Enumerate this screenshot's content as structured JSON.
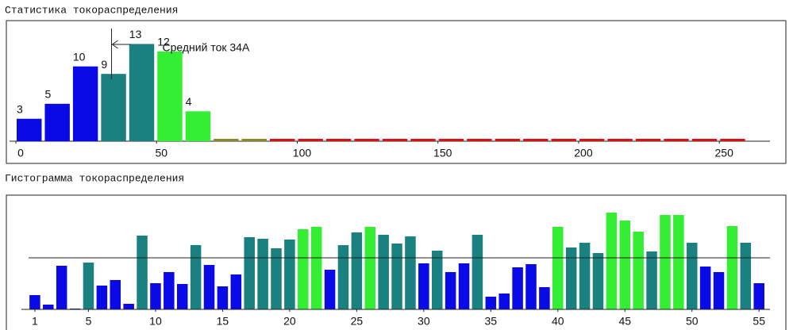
{
  "chart_data": [
    {
      "type": "histogram",
      "title": "Статистика токораспределения",
      "bins": [
        0,
        10,
        20,
        30,
        40,
        50,
        60,
        70,
        80,
        90,
        100,
        110,
        120,
        130,
        140,
        150,
        160,
        170,
        180,
        190,
        200,
        210,
        220,
        230,
        240,
        250,
        260
      ],
      "counts": [
        3,
        5,
        10,
        9,
        13,
        12,
        4,
        0,
        0,
        0,
        0,
        0,
        0,
        0,
        0,
        0,
        0,
        0,
        0,
        0,
        0,
        0,
        0,
        0,
        0,
        0
      ],
      "colors": [
        "#0a0ae6",
        "#0a0ae6",
        "#0a0ae6",
        "#1a8080",
        "#1a8080",
        "#33ee33",
        "#33ee33",
        "#8a8a2a",
        "#8a8a2a",
        "#dd1111",
        "#dd1111",
        "#dd1111",
        "#dd1111",
        "#dd1111",
        "#dd1111",
        "#dd1111",
        "#dd1111",
        "#dd1111",
        "#dd1111",
        "#dd1111",
        "#dd1111",
        "#dd1111",
        "#dd1111",
        "#dd1111",
        "#dd1111",
        "#dd1111"
      ],
      "xlim": [
        0,
        268
      ],
      "xticks": [
        0,
        50,
        100,
        150,
        200,
        250
      ],
      "ylim": [
        0,
        14
      ],
      "mean": 34,
      "annotation": "Средний ток 34А"
    },
    {
      "type": "bar",
      "title": "Гистограмма токораспределения",
      "x": [
        1,
        2,
        3,
        4,
        5,
        6,
        7,
        8,
        9,
        10,
        11,
        12,
        13,
        14,
        15,
        16,
        17,
        18,
        19,
        20,
        21,
        22,
        23,
        24,
        25,
        26,
        27,
        28,
        29,
        30,
        31,
        32,
        33,
        34,
        35,
        36,
        37,
        38,
        39,
        40,
        41,
        42,
        43,
        44,
        45,
        46,
        47,
        48,
        49,
        50,
        51,
        52,
        53,
        54,
        55
      ],
      "values": [
        18,
        6,
        55,
        1,
        59,
        30,
        37,
        7,
        93,
        33,
        47,
        32,
        81,
        56,
        29,
        44,
        91,
        89,
        77,
        88,
        101,
        104,
        50,
        81,
        97,
        104,
        94,
        83,
        92,
        58,
        74,
        47,
        58,
        94,
        16,
        20,
        53,
        57,
        28,
        104,
        78,
        84,
        71,
        122,
        112,
        98,
        73,
        119,
        119,
        84,
        54,
        47,
        105,
        84,
        33
      ],
      "colors": [
        "#0a0ae6",
        "#0a0ae6",
        "#0a0ae6",
        "#0a0ae6",
        "#1a8080",
        "#0a0ae6",
        "#0a0ae6",
        "#0a0ae6",
        "#1a8080",
        "#0a0ae6",
        "#0a0ae6",
        "#0a0ae6",
        "#1a8080",
        "#0a0ae6",
        "#0a0ae6",
        "#0a0ae6",
        "#1a8080",
        "#1a8080",
        "#1a8080",
        "#1a8080",
        "#33ee33",
        "#33ee33",
        "#0a0ae6",
        "#1a8080",
        "#1a8080",
        "#33ee33",
        "#1a8080",
        "#1a8080",
        "#1a8080",
        "#0a0ae6",
        "#1a8080",
        "#0a0ae6",
        "#0a0ae6",
        "#1a8080",
        "#0a0ae6",
        "#0a0ae6",
        "#0a0ae6",
        "#0a0ae6",
        "#0a0ae6",
        "#33ee33",
        "#1a8080",
        "#1a8080",
        "#1a8080",
        "#33ee33",
        "#33ee33",
        "#33ee33",
        "#1a8080",
        "#33ee33",
        "#33ee33",
        "#1a8080",
        "#0a0ae6",
        "#0a0ae6",
        "#33ee33",
        "#1a8080",
        "#0a0ae6"
      ],
      "xlim": [
        0,
        57
      ],
      "xticks": [
        1,
        5,
        10,
        15,
        20,
        25,
        30,
        35,
        40,
        45,
        50,
        55
      ],
      "ylim": [
        0,
        142
      ],
      "reference_line": 65
    }
  ]
}
